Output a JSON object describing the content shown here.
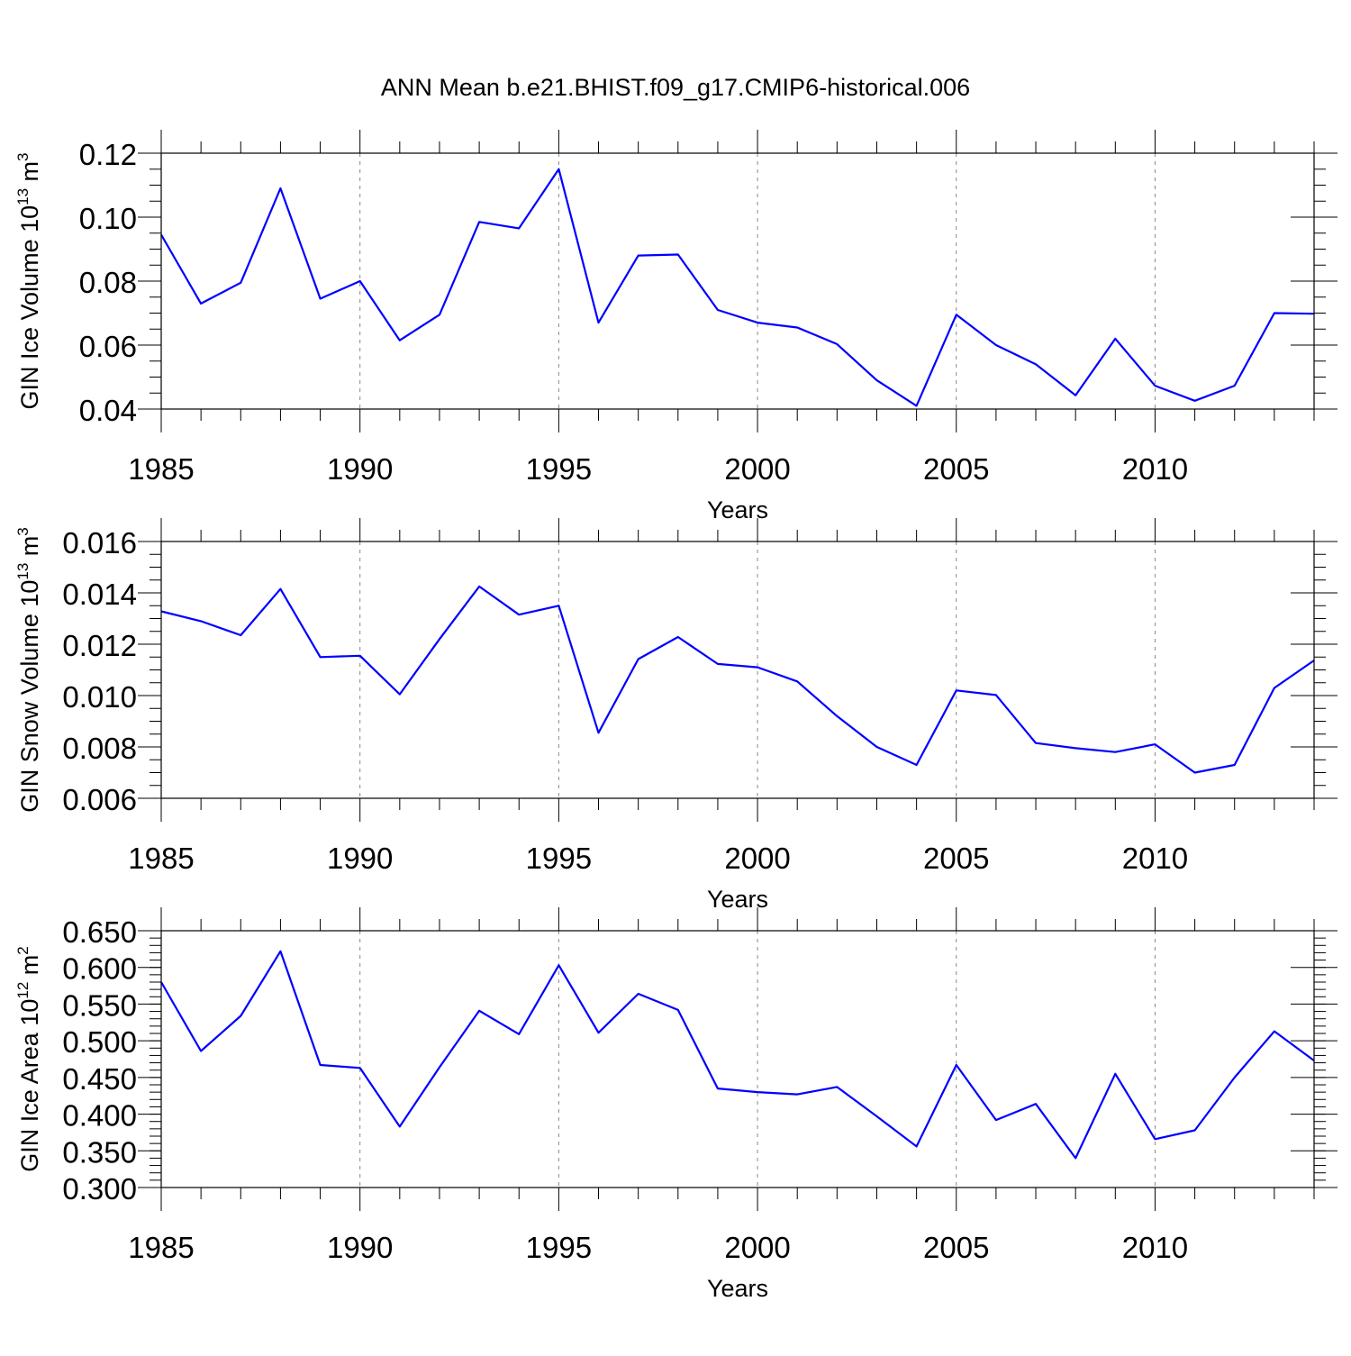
{
  "figure_title": "ANN Mean b.e21.BHIST.f09_g17.CMIP6-historical.006",
  "colors": {
    "line": "#0000ff",
    "axis": "#000000",
    "grid": "#888888"
  },
  "chart_data": [
    {
      "type": "line",
      "ylabel": "GIN Ice Volume 10",
      "ylabel_exp": "13",
      "ylabel_unit": " m",
      "ylabel_unit_exp": "3",
      "xlabel": "Years",
      "xlim": [
        1985,
        2014
      ],
      "ylim": [
        0.04,
        0.12
      ],
      "grid_x": "dashed at major ticks",
      "x_ticks": [
        1985,
        1990,
        1995,
        2000,
        2005,
        2010
      ],
      "x_tick_labels": [
        "1985",
        "1990",
        "1995",
        "2000",
        "2005",
        "2010"
      ],
      "y_ticks": [
        0.04,
        0.06,
        0.08,
        0.1,
        0.12
      ],
      "y_tick_labels": [
        "0.04",
        "0.06",
        "0.08",
        "0.10",
        "0.12"
      ],
      "y_minor_step": 0.005,
      "x": [
        1985,
        1986,
        1987,
        1988,
        1989,
        1990,
        1991,
        1992,
        1993,
        1994,
        1995,
        1996,
        1997,
        1998,
        1999,
        2000,
        2001,
        2002,
        2003,
        2004,
        2005,
        2006,
        2007,
        2008,
        2009,
        2010,
        2011,
        2012,
        2013,
        2014
      ],
      "series": [
        {
          "name": "GIN Ice Volume",
          "values": [
            0.0945,
            0.073,
            0.0795,
            0.109,
            0.0745,
            0.08,
            0.0615,
            0.0695,
            0.0985,
            0.0965,
            0.115,
            0.067,
            0.088,
            0.0883,
            0.071,
            0.067,
            0.0655,
            0.0603,
            0.049,
            0.041,
            0.0695,
            0.06,
            0.054,
            0.0443,
            0.062,
            0.0473,
            0.0426,
            0.0473,
            0.07,
            0.0698
          ]
        }
      ]
    },
    {
      "type": "line",
      "ylabel": "GIN Snow Volume 10",
      "ylabel_exp": "13",
      "ylabel_unit": " m",
      "ylabel_unit_exp": "3",
      "xlabel": "Years",
      "xlim": [
        1985,
        2014
      ],
      "ylim": [
        0.006,
        0.016
      ],
      "grid_x": "dashed at major ticks",
      "x_ticks": [
        1985,
        1990,
        1995,
        2000,
        2005,
        2010
      ],
      "x_tick_labels": [
        "1985",
        "1990",
        "1995",
        "2000",
        "2005",
        "2010"
      ],
      "y_ticks": [
        0.006,
        0.008,
        0.01,
        0.012,
        0.014,
        0.016
      ],
      "y_tick_labels": [
        "0.006",
        "0.008",
        "0.010",
        "0.012",
        "0.014",
        "0.016"
      ],
      "y_minor_step": 0.0005,
      "x": [
        1985,
        1986,
        1987,
        1988,
        1989,
        1990,
        1991,
        1992,
        1993,
        1994,
        1995,
        1996,
        1997,
        1998,
        1999,
        2000,
        2001,
        2002,
        2003,
        2004,
        2005,
        2006,
        2007,
        2008,
        2009,
        2010,
        2011,
        2012,
        2013,
        2014
      ],
      "series": [
        {
          "name": "GIN Snow Volume",
          "values": [
            0.01328,
            0.0129,
            0.01235,
            0.01415,
            0.0115,
            0.01155,
            0.01005,
            0.0122,
            0.01425,
            0.01315,
            0.0135,
            0.00855,
            0.01142,
            0.01228,
            0.01123,
            0.0111,
            0.01055,
            0.0092,
            0.008,
            0.0073,
            0.0102,
            0.01002,
            0.00815,
            0.00795,
            0.0078,
            0.0081,
            0.007,
            0.0073,
            0.0103,
            0.01137
          ]
        }
      ]
    },
    {
      "type": "line",
      "ylabel": "GIN Ice Area 10",
      "ylabel_exp": "12",
      "ylabel_unit": " m",
      "ylabel_unit_exp": "2",
      "xlabel": "Years",
      "xlim": [
        1985,
        2014
      ],
      "ylim": [
        0.3,
        0.65
      ],
      "grid_x": "dashed at major ticks",
      "x_ticks": [
        1985,
        1990,
        1995,
        2000,
        2005,
        2010
      ],
      "x_tick_labels": [
        "1985",
        "1990",
        "1995",
        "2000",
        "2005",
        "2010"
      ],
      "y_ticks": [
        0.3,
        0.35,
        0.4,
        0.45,
        0.5,
        0.55,
        0.6,
        0.65
      ],
      "y_tick_labels": [
        "0.300",
        "0.350",
        "0.400",
        "0.450",
        "0.500",
        "0.550",
        "0.600",
        "0.650"
      ],
      "y_minor_step": 0.01,
      "x": [
        1985,
        1986,
        1987,
        1988,
        1989,
        1990,
        1991,
        1992,
        1993,
        1994,
        1995,
        1996,
        1997,
        1998,
        1999,
        2000,
        2001,
        2002,
        2003,
        2004,
        2005,
        2006,
        2007,
        2008,
        2009,
        2010,
        2011,
        2012,
        2013,
        2014
      ],
      "series": [
        {
          "name": "GIN Ice Area",
          "values": [
            0.58,
            0.486,
            0.534,
            0.622,
            0.467,
            0.463,
            0.383,
            0.464,
            0.541,
            0.509,
            0.603,
            0.511,
            0.564,
            0.542,
            0.435,
            0.43,
            0.427,
            0.437,
            0.397,
            0.356,
            0.467,
            0.392,
            0.414,
            0.34,
            0.455,
            0.366,
            0.378,
            0.45,
            0.513,
            0.473
          ]
        }
      ]
    }
  ]
}
